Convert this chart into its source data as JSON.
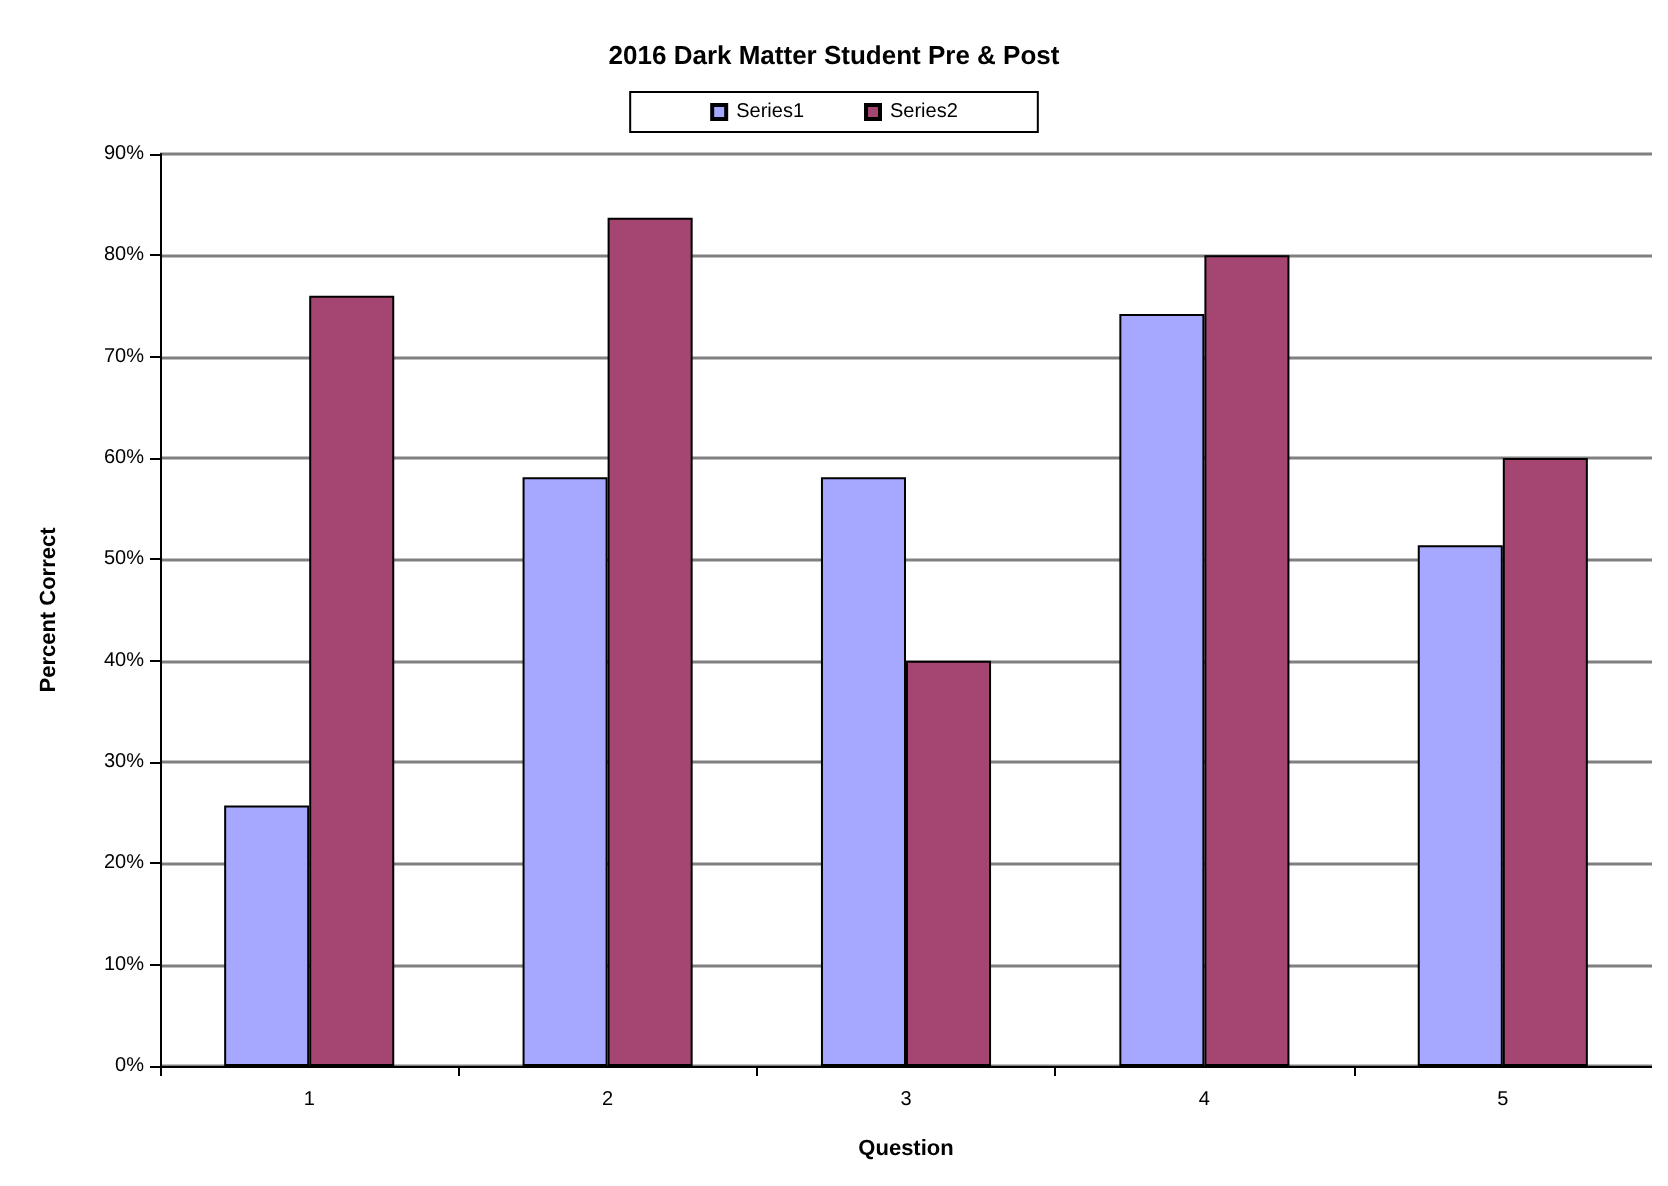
{
  "chart_data": {
    "type": "bar",
    "title": "2016 Dark Matter Student Pre & Post",
    "xlabel": "Question",
    "ylabel": "Percent Correct",
    "categories": [
      "1",
      "2",
      "3",
      "4",
      "5"
    ],
    "series": [
      {
        "name": "Series1",
        "color": "#a5a8fe",
        "values": [
          25.7,
          58.1,
          58.1,
          74.2,
          51.4
        ]
      },
      {
        "name": "Series2",
        "color": "#a54672",
        "values": [
          76,
          83.7,
          40,
          80,
          60
        ]
      }
    ],
    "ylim": [
      0,
      90
    ],
    "yticks": [
      {
        "value": 0,
        "label": "0%"
      },
      {
        "value": 10,
        "label": "10%"
      },
      {
        "value": 20,
        "label": "20%"
      },
      {
        "value": 30,
        "label": "30%"
      },
      {
        "value": 40,
        "label": "40%"
      },
      {
        "value": 50,
        "label": "50%"
      },
      {
        "value": 60,
        "label": "60%"
      },
      {
        "value": 70,
        "label": "70%"
      },
      {
        "value": 80,
        "label": "80%"
      },
      {
        "value": 90,
        "label": "90%"
      }
    ],
    "grid": "y",
    "legend": "top"
  }
}
